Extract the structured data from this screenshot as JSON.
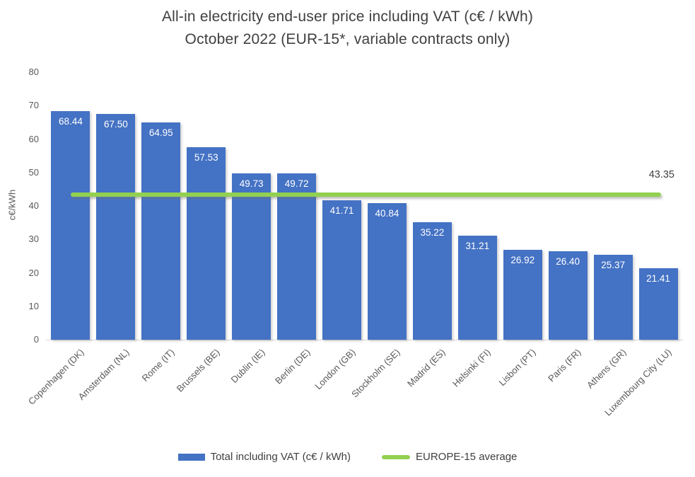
{
  "title": {
    "line1": "All-in electricity end-user price including VAT (c€ / kWh)",
    "line2": "October 2022 (EUR-15*, variable contracts only)"
  },
  "chart_data": {
    "type": "bar",
    "categories": [
      "Copenhagen (DK)",
      "Amsterdam (NL)",
      "Rome (IT)",
      "Brussels (BE)",
      "Dublin (IE)",
      "Berlin (DE)",
      "London (GB)",
      "Stockholm (SE)",
      "Madrid (ES)",
      "Helsinki (FI)",
      "Lisbon (PT)",
      "Paris (FR)",
      "Athens (GR)",
      "Luxembourg City (LU)"
    ],
    "values": [
      68.44,
      67.5,
      64.95,
      57.53,
      49.73,
      49.72,
      41.71,
      40.84,
      35.22,
      31.21,
      26.92,
      26.4,
      25.37,
      21.41
    ],
    "value_labels": [
      "68.44",
      "67.50",
      "64.95",
      "57.53",
      "49.73",
      "49.72",
      "41.71",
      "40.84",
      "35.22",
      "31.21",
      "26.92",
      "26.40",
      "25.37",
      "21.41"
    ],
    "ylabel": "c€/kWh",
    "ylim": [
      0,
      80
    ],
    "ytick_step": 10,
    "grid": false,
    "legend_position": "bottom",
    "average_line": {
      "value": 43.35,
      "label_text": "43.35"
    },
    "legend": [
      {
        "label": "Total including VAT (c€ / kWh)",
        "swatch": "bar"
      },
      {
        "label": "EUROPE-15 average",
        "swatch": "line"
      }
    ],
    "colors": {
      "bar": "#4472C4",
      "average_line": "#92D050",
      "value_label": "#FFFFFF",
      "title_text": "#3F3F3F",
      "axis_text": "#595959"
    }
  }
}
